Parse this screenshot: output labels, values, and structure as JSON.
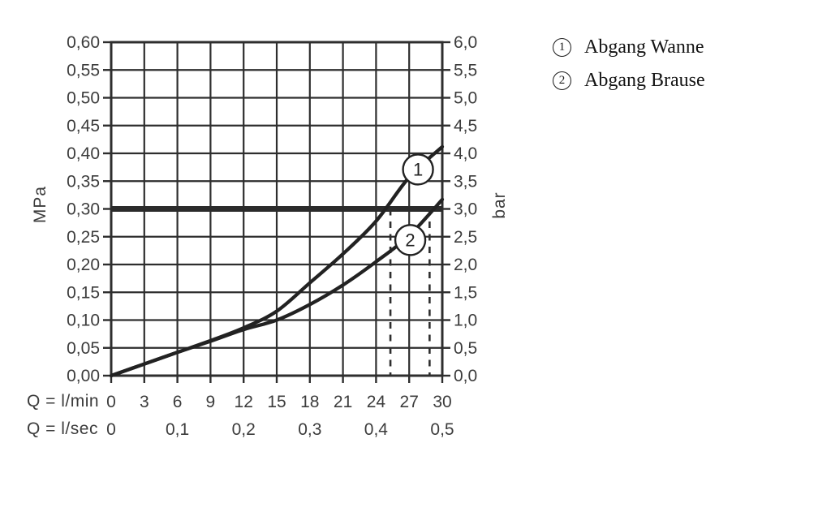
{
  "chart_data": {
    "type": "line",
    "title": "",
    "x": [
      0,
      3,
      6,
      9,
      12,
      15,
      18,
      21,
      24,
      27,
      30
    ],
    "series": [
      {
        "id": "1",
        "name": "Abgang Wanne",
        "values_mpa": [
          0.0,
          0.021,
          0.042,
          0.063,
          0.086,
          0.116,
          0.167,
          0.219,
          0.278,
          0.357,
          0.412
        ]
      },
      {
        "id": "2",
        "name": "Abgang Brause",
        "values_mpa": [
          0.0,
          0.021,
          0.042,
          0.062,
          0.083,
          0.1,
          0.128,
          0.163,
          0.205,
          0.252,
          0.317
        ]
      }
    ],
    "y_axis_left": {
      "title": "MPa",
      "min": 0,
      "max": 0.6,
      "step": 0.05,
      "tick_labels": [
        "0,60",
        "0,55",
        "0,50",
        "0,45",
        "0,40",
        "0,35",
        "0,30",
        "0,25",
        "0,20",
        "0,15",
        "0,10",
        "0,05",
        "0,00"
      ]
    },
    "y_axis_right": {
      "title": "bar",
      "min": 0,
      "max": 6,
      "step": 0.5,
      "tick_labels": [
        "6,0",
        "5,5",
        "5,0",
        "4,5",
        "4,0",
        "3,5",
        "3,0",
        "2,5",
        "2,0",
        "1,5",
        "1,0",
        "0,5",
        "0,0"
      ]
    },
    "x_axis_lmin": {
      "title": "Q = l/min",
      "tick_labels": [
        "0",
        "3",
        "6",
        "9",
        "12",
        "15",
        "18",
        "21",
        "24",
        "27",
        "30"
      ]
    },
    "x_axis_lsec": {
      "title": "Q = l/sec",
      "tick_labels": [
        "0",
        "0,1",
        "0,2",
        "0,3",
        "0,4",
        "0,5"
      ]
    },
    "reference_line": {
      "y_mpa": 0.3,
      "style": "thick"
    },
    "dashed_markers_lmin": [
      25.3,
      28.85
    ],
    "curve_badges": [
      {
        "text": "1",
        "x_lmin": 27.8,
        "y_mpa": 0.371
      },
      {
        "text": "2",
        "x_lmin": 27.1,
        "y_mpa": 0.244
      }
    ],
    "grid": true,
    "legend_position": "top-right"
  },
  "legend": {
    "items": [
      {
        "symbol": "1",
        "label": "Abgang Wanne"
      },
      {
        "symbol": "2",
        "label": "Abgang Brause"
      }
    ]
  },
  "colors": {
    "grid": "#2e2e2e",
    "curve": "#222222",
    "reference": "#2b2b2b",
    "tick_text": "#3c3c3c",
    "legend_text": "#141414",
    "background": "#ffffff"
  }
}
